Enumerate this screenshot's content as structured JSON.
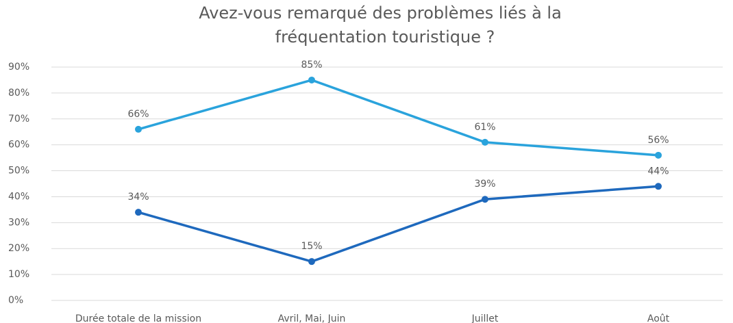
{
  "chart_data": {
    "type": "line",
    "title": [
      "Avez-vous remarqué des problèmes liés à la",
      "fréquentation touristique ?"
    ],
    "categories": [
      "Durée totale de la mission",
      "Avril, Mai, Juin",
      "Juillet",
      "Août"
    ],
    "series": [
      {
        "color": "#2aa3dc",
        "values": [
          66,
          85,
          61,
          56
        ],
        "value_labels": [
          "66%",
          "85%",
          "61%",
          "56%"
        ]
      },
      {
        "color": "#1e69bd",
        "values": [
          34,
          15,
          39,
          44
        ],
        "value_labels": [
          "34%",
          "15%",
          "39%",
          "44%"
        ]
      }
    ],
    "ylim": [
      0,
      90
    ],
    "yticks": [
      {
        "value": 0,
        "label": "0%"
      },
      {
        "value": 10,
        "label": "10%"
      },
      {
        "value": 20,
        "label": "20%"
      },
      {
        "value": 30,
        "label": "30%"
      },
      {
        "value": 40,
        "label": "40%"
      },
      {
        "value": 50,
        "label": "50%"
      },
      {
        "value": 60,
        "label": "60%"
      },
      {
        "value": 70,
        "label": "70%"
      },
      {
        "value": 80,
        "label": "80%"
      },
      {
        "value": 90,
        "label": "90%"
      }
    ],
    "grid": true
  }
}
